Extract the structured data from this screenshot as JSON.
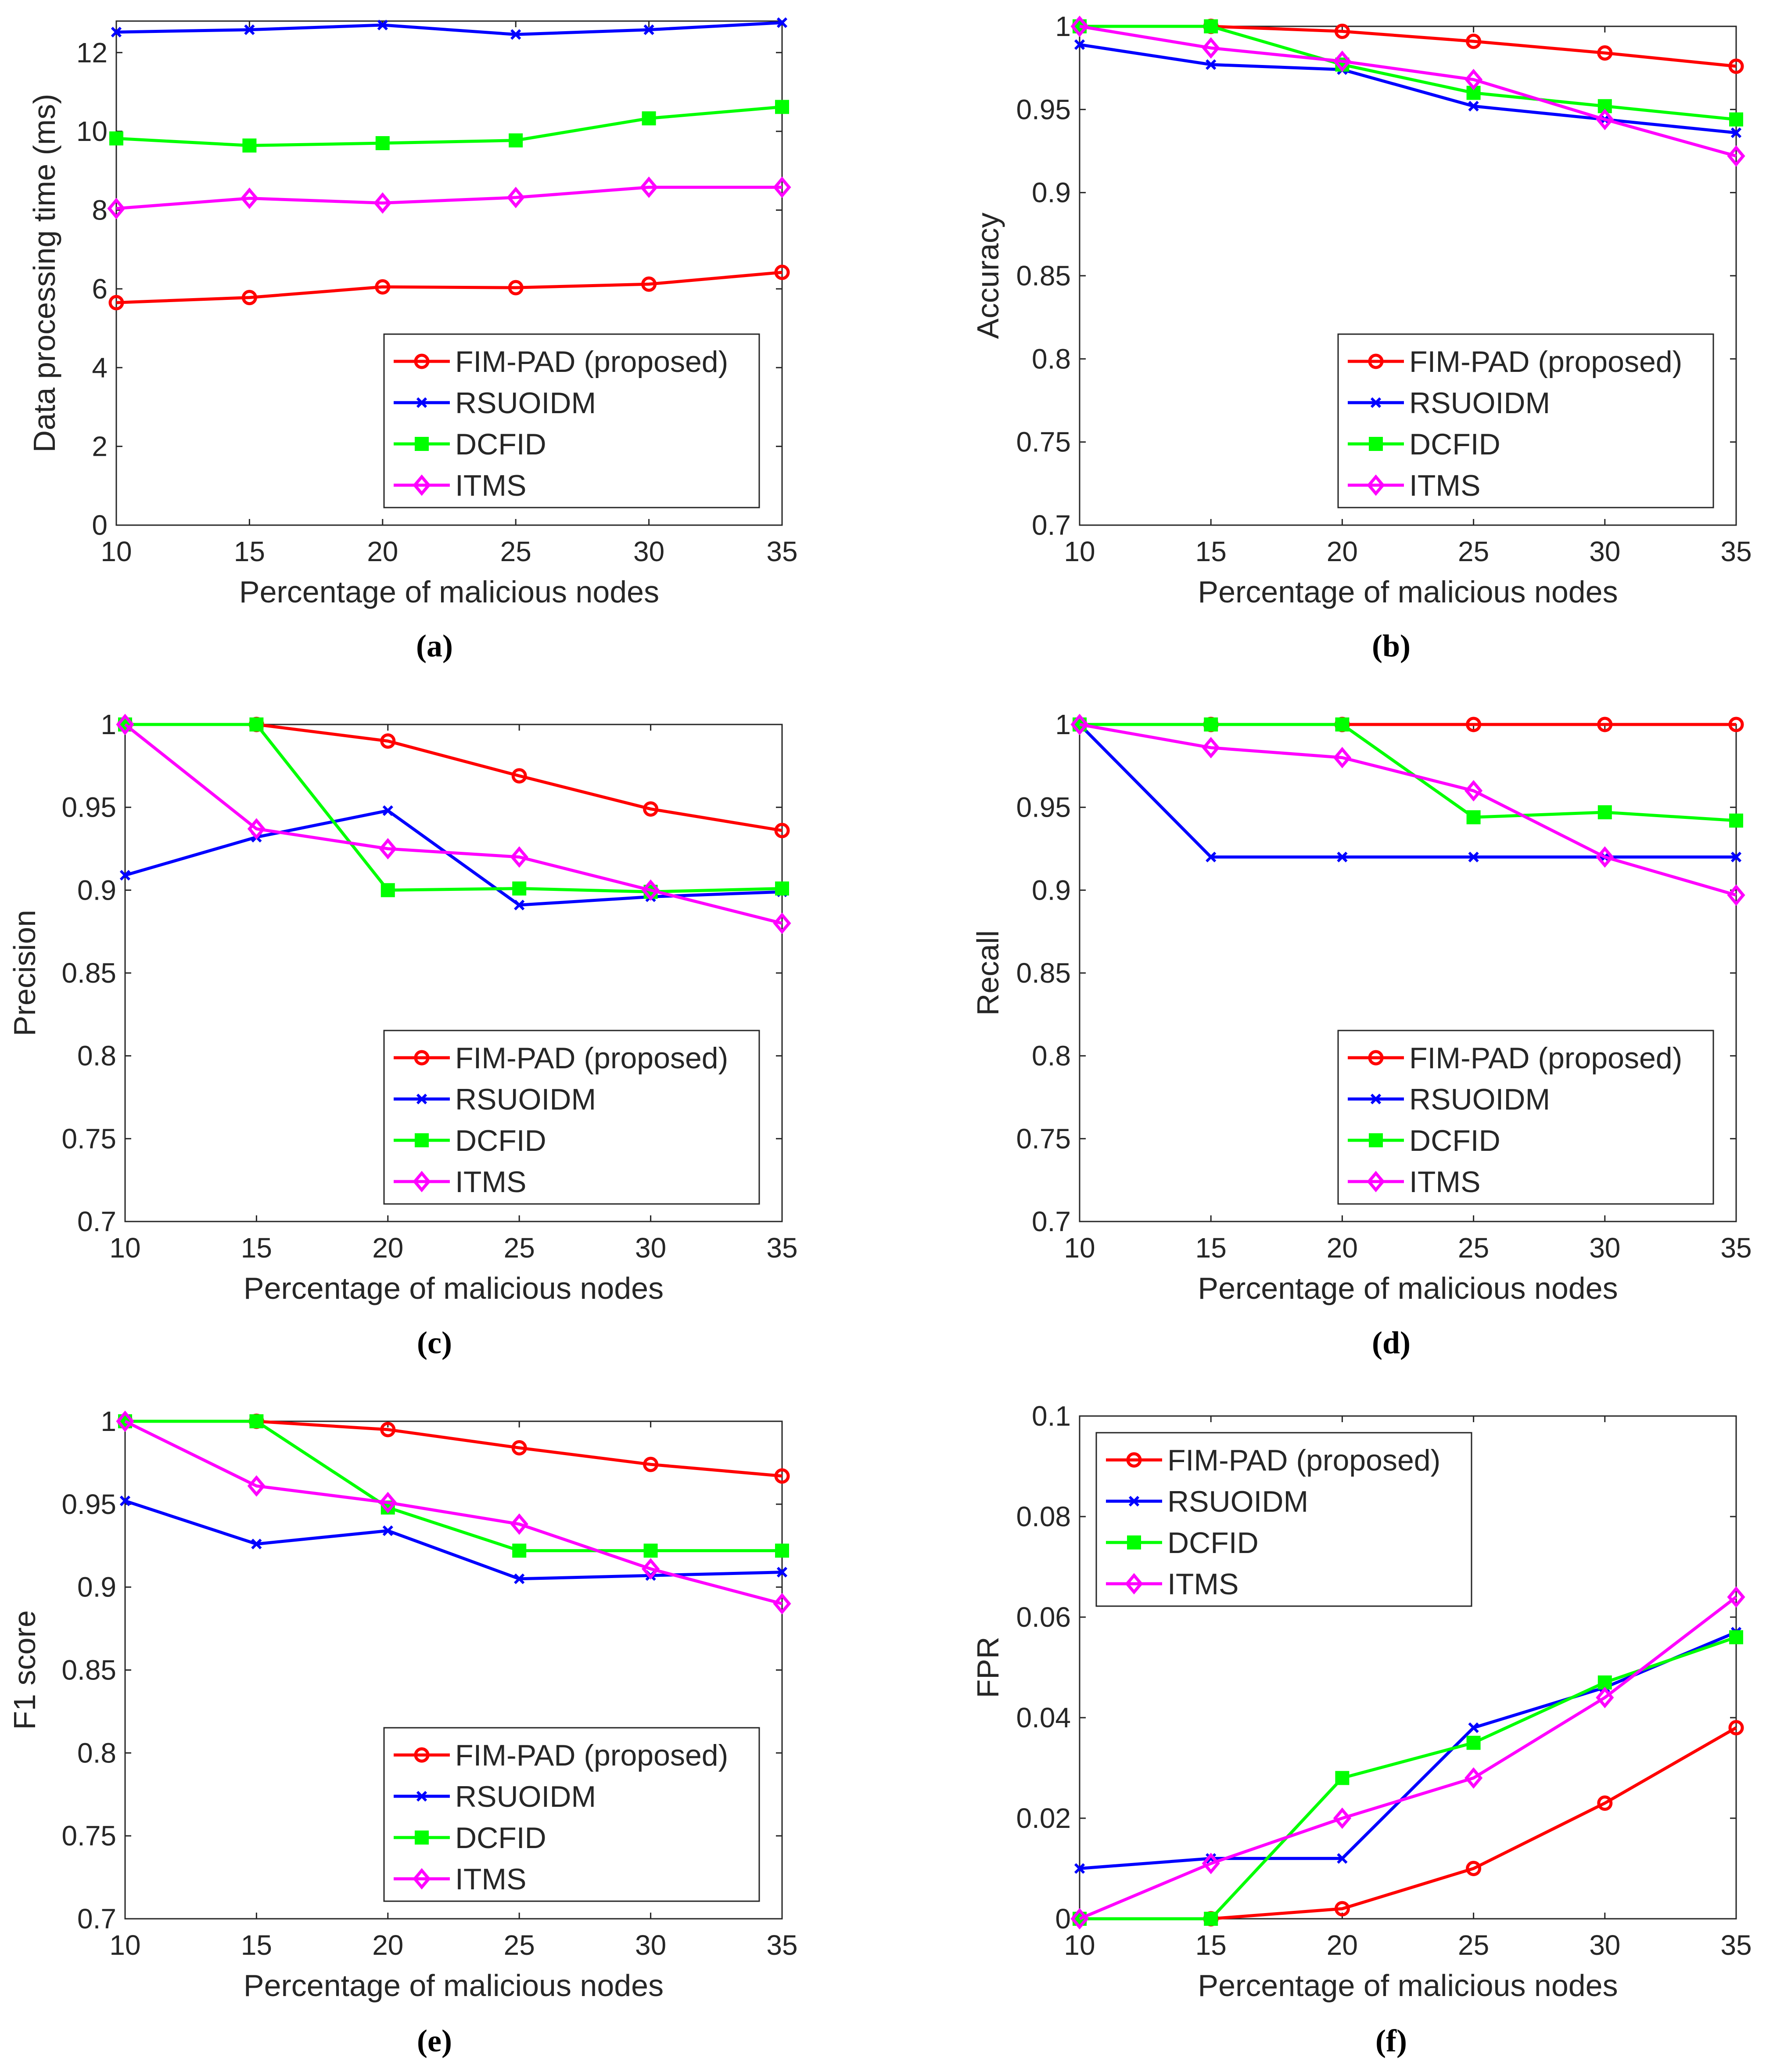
{
  "figure": {
    "x_label": "Percentage of malicious nodes",
    "series_colors": {
      "FIM-PAD (proposed)": "#ff0000",
      "RSUOIDM": "#0000ff",
      "DCFID": "#00ff00",
      "ITMS": "#ff00ff"
    },
    "series_markers": {
      "FIM-PAD (proposed)": "circle",
      "RSUOIDM": "x-mark",
      "DCFID": "square",
      "ITMS": "diamond"
    }
  },
  "chart_data": [
    {
      "type": "line",
      "id": "a",
      "caption": "(a)",
      "ylabel": "Data processing time (ms)",
      "xlabel": "Percentage of malicious nodes",
      "x": [
        10,
        15,
        20,
        25,
        30,
        35
      ],
      "xticks": [
        "10",
        "15",
        "20",
        "25",
        "30",
        "35"
      ],
      "ylim": [
        0,
        12.8
      ],
      "yticks": [
        0,
        2,
        4,
        6,
        8,
        10,
        12
      ],
      "ytick_labels": [
        "0",
        "2",
        "4",
        "6",
        "8",
        "10",
        "12"
      ],
      "legend_position": "bottom-right",
      "series": [
        {
          "name": "FIM-PAD (proposed)",
          "values": [
            5.65,
            5.78,
            6.05,
            6.03,
            6.12,
            6.42
          ]
        },
        {
          "name": "RSUOIDM",
          "values": [
            12.52,
            12.58,
            12.7,
            12.46,
            12.58,
            12.76
          ]
        },
        {
          "name": "DCFID",
          "values": [
            9.82,
            9.64,
            9.7,
            9.77,
            10.33,
            10.62
          ]
        },
        {
          "name": "ITMS",
          "values": [
            8.04,
            8.3,
            8.18,
            8.32,
            8.58,
            8.58
          ]
        }
      ]
    },
    {
      "type": "line",
      "id": "b",
      "caption": "(b)",
      "ylabel": "Accuracy",
      "xlabel": "Percentage of malicious nodes",
      "x": [
        10,
        15,
        20,
        25,
        30,
        35
      ],
      "xticks": [
        "10",
        "15",
        "20",
        "25",
        "30",
        "35"
      ],
      "ylim": [
        0.7,
        1.0
      ],
      "yticks": [
        0.7,
        0.75,
        0.8,
        0.85,
        0.9,
        0.95,
        1.0
      ],
      "ytick_labels": [
        "0.7",
        "0.75",
        "0.8",
        "0.85",
        "0.9",
        "0.95",
        "1"
      ],
      "legend_position": "bottom-right",
      "series": [
        {
          "name": "FIM-PAD (proposed)",
          "values": [
            1.0,
            1.0,
            0.997,
            0.991,
            0.984,
            0.976
          ]
        },
        {
          "name": "RSUOIDM",
          "values": [
            0.989,
            0.977,
            0.974,
            0.952,
            0.944,
            0.936
          ]
        },
        {
          "name": "DCFID",
          "values": [
            1.0,
            1.0,
            0.977,
            0.96,
            0.952,
            0.944
          ]
        },
        {
          "name": "ITMS",
          "values": [
            1.0,
            0.987,
            0.979,
            0.968,
            0.944,
            0.922
          ]
        }
      ]
    },
    {
      "type": "line",
      "id": "c",
      "caption": "(c)",
      "ylabel": "Precision",
      "xlabel": "Percentage of malicious nodes",
      "x": [
        10,
        15,
        20,
        25,
        30,
        35
      ],
      "xticks": [
        "10",
        "15",
        "20",
        "25",
        "30",
        "35"
      ],
      "ylim": [
        0.7,
        1.0
      ],
      "yticks": [
        0.7,
        0.75,
        0.8,
        0.85,
        0.9,
        0.95,
        1.0
      ],
      "ytick_labels": [
        "0.7",
        "0.75",
        "0.8",
        "0.85",
        "0.9",
        "0.95",
        "1"
      ],
      "legend_position": "bottom-right",
      "series": [
        {
          "name": "FIM-PAD (proposed)",
          "values": [
            1.0,
            1.0,
            0.99,
            0.969,
            0.949,
            0.936
          ]
        },
        {
          "name": "RSUOIDM",
          "values": [
            0.909,
            0.932,
            0.948,
            0.891,
            0.896,
            0.899
          ]
        },
        {
          "name": "DCFID",
          "values": [
            1.0,
            1.0,
            0.9,
            0.901,
            0.899,
            0.901
          ]
        },
        {
          "name": "ITMS",
          "values": [
            1.0,
            0.937,
            0.925,
            0.92,
            0.9,
            0.88
          ]
        }
      ]
    },
    {
      "type": "line",
      "id": "d",
      "caption": "(d)",
      "ylabel": "Recall",
      "xlabel": "Percentage of malicious nodes",
      "x": [
        10,
        15,
        20,
        25,
        30,
        35
      ],
      "xticks": [
        "10",
        "15",
        "20",
        "25",
        "30",
        "35"
      ],
      "ylim": [
        0.7,
        1.0
      ],
      "yticks": [
        0.7,
        0.75,
        0.8,
        0.85,
        0.9,
        0.95,
        1.0
      ],
      "ytick_labels": [
        "0.7",
        "0.75",
        "0.8",
        "0.85",
        "0.9",
        "0.95",
        "1"
      ],
      "legend_position": "bottom-right",
      "series": [
        {
          "name": "FIM-PAD (proposed)",
          "values": [
            1.0,
            1.0,
            1.0,
            1.0,
            1.0,
            1.0
          ]
        },
        {
          "name": "RSUOIDM",
          "values": [
            1.0,
            0.92,
            0.92,
            0.92,
            0.92,
            0.92
          ]
        },
        {
          "name": "DCFID",
          "values": [
            1.0,
            1.0,
            1.0,
            0.944,
            0.947,
            0.942
          ]
        },
        {
          "name": "ITMS",
          "values": [
            1.0,
            0.986,
            0.98,
            0.96,
            0.92,
            0.897
          ]
        }
      ]
    },
    {
      "type": "line",
      "id": "e",
      "caption": "(e)",
      "ylabel": "F1 score",
      "xlabel": "Percentage of malicious nodes",
      "x": [
        10,
        15,
        20,
        25,
        30,
        35
      ],
      "xticks": [
        "10",
        "15",
        "20",
        "25",
        "30",
        "35"
      ],
      "ylim": [
        0.7,
        1.0
      ],
      "yticks": [
        0.7,
        0.75,
        0.8,
        0.85,
        0.9,
        0.95,
        1.0
      ],
      "ytick_labels": [
        "0.7",
        "0.75",
        "0.8",
        "0.85",
        "0.9",
        "0.95",
        "1"
      ],
      "legend_position": "bottom-right",
      "series": [
        {
          "name": "FIM-PAD (proposed)",
          "values": [
            1.0,
            1.0,
            0.995,
            0.984,
            0.974,
            0.967
          ]
        },
        {
          "name": "RSUOIDM",
          "values": [
            0.952,
            0.926,
            0.934,
            0.905,
            0.907,
            0.909
          ]
        },
        {
          "name": "DCFID",
          "values": [
            1.0,
            1.0,
            0.948,
            0.922,
            0.922,
            0.922
          ]
        },
        {
          "name": "ITMS",
          "values": [
            1.0,
            0.961,
            0.951,
            0.938,
            0.911,
            0.89
          ]
        }
      ]
    },
    {
      "type": "line",
      "id": "f",
      "caption": "(f)",
      "ylabel": "FPR",
      "xlabel": "Percentage of malicious nodes",
      "x": [
        10,
        15,
        20,
        25,
        30,
        35
      ],
      "xticks": [
        "10",
        "15",
        "20",
        "25",
        "30",
        "35"
      ],
      "ylim": [
        0,
        0.1
      ],
      "yticks": [
        0,
        0.02,
        0.04,
        0.06,
        0.08,
        0.1
      ],
      "ytick_labels": [
        "0",
        "0.02",
        "0.04",
        "0.06",
        "0.08",
        "0.1"
      ],
      "legend_position": "top-left",
      "series": [
        {
          "name": "FIM-PAD (proposed)",
          "values": [
            0.0,
            0.0,
            0.002,
            0.01,
            0.023,
            0.038
          ]
        },
        {
          "name": "RSUOIDM",
          "values": [
            0.01,
            0.012,
            0.012,
            0.038,
            0.046,
            0.057
          ]
        },
        {
          "name": "DCFID",
          "values": [
            0.0,
            0.0,
            0.028,
            0.035,
            0.047,
            0.056
          ]
        },
        {
          "name": "ITMS",
          "values": [
            0.0,
            0.011,
            0.02,
            0.028,
            0.044,
            0.064
          ]
        }
      ]
    }
  ]
}
